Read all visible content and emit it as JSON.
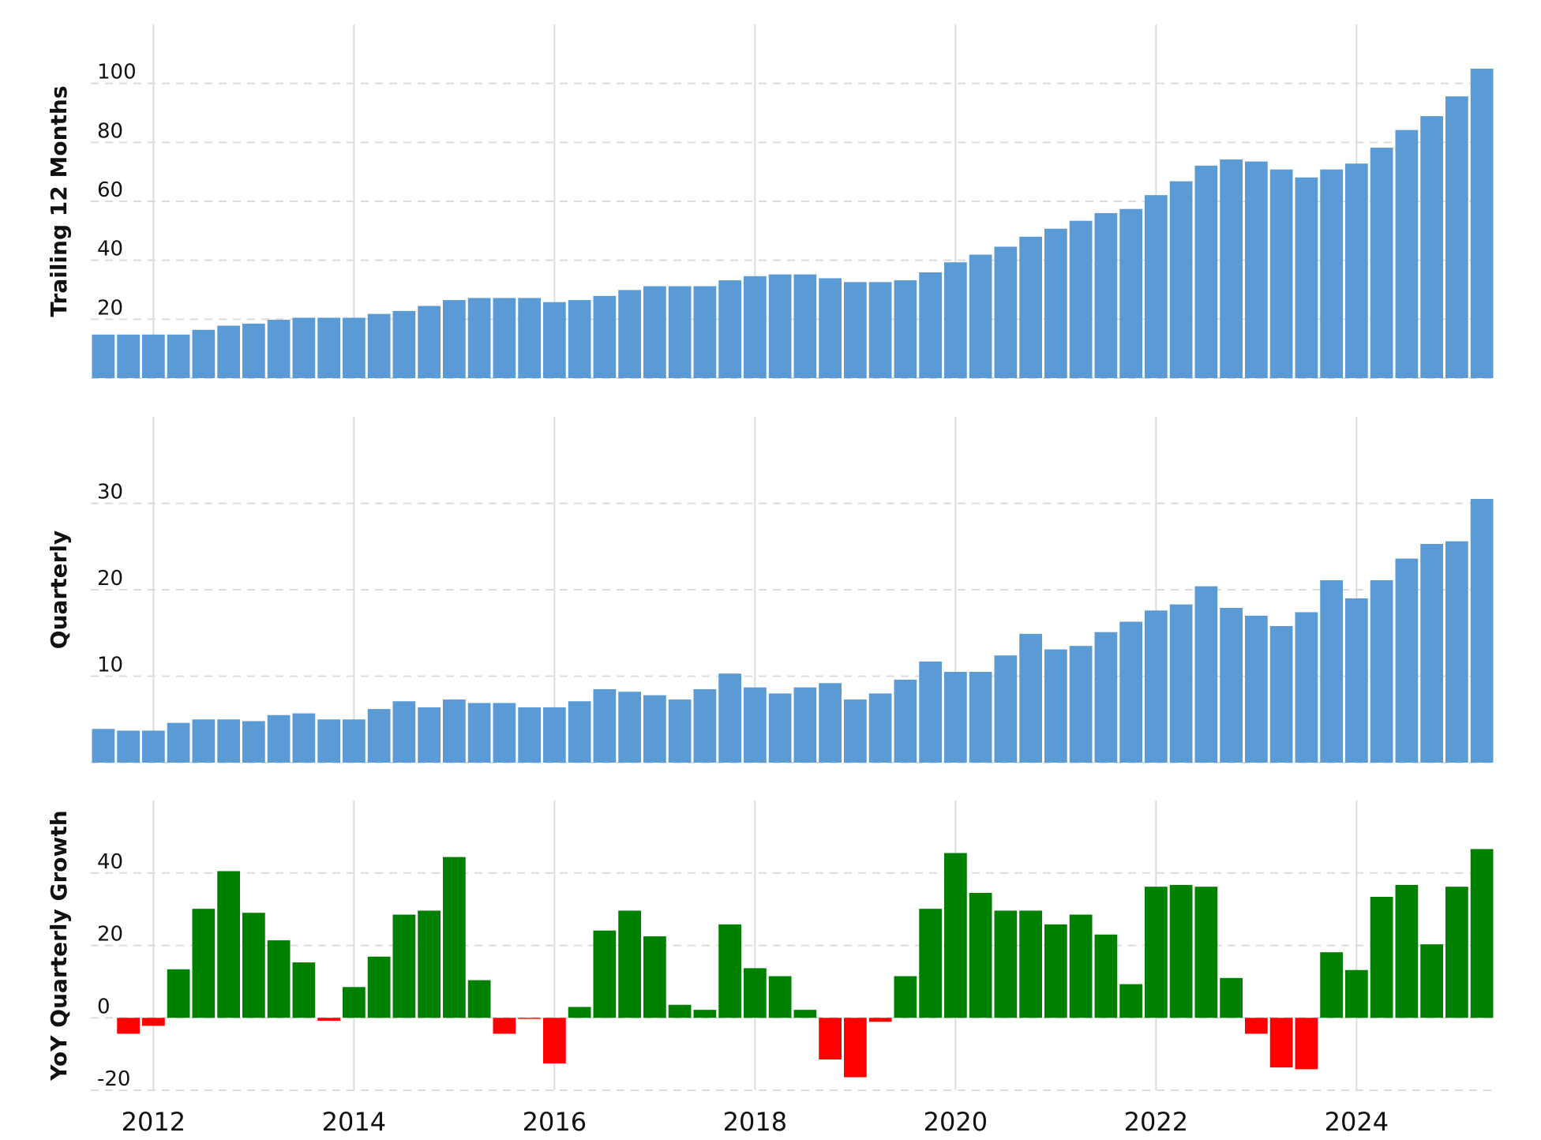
{
  "chart_data": [
    {
      "type": "bar",
      "ylabel": "Trailing 12 Months",
      "color": "#5b9bd5",
      "grid": true,
      "x": [
        2011.5,
        2011.75,
        2012,
        2012.25,
        2012.5,
        2012.75,
        2013,
        2013.25,
        2013.5,
        2013.75,
        2014,
        2014.25,
        2014.5,
        2014.75,
        2015,
        2015.25,
        2015.5,
        2015.75,
        2016,
        2016.25,
        2016.5,
        2016.75,
        2017,
        2017.25,
        2017.5,
        2017.75,
        2018,
        2018.25,
        2018.5,
        2018.75,
        2019,
        2019.25,
        2019.5,
        2019.75,
        2020,
        2020.25,
        2020.5,
        2020.75,
        2021,
        2021.25,
        2021.5,
        2021.75,
        2022,
        2022.25,
        2022.5,
        2022.75,
        2023,
        2023.25,
        2023.5,
        2023.75,
        2024,
        2024.25,
        2024.5,
        2024.75,
        2025,
        2025.25
      ],
      "values": [
        14.8,
        14.8,
        14.8,
        14.8,
        16.4,
        17.8,
        18.5,
        19.8,
        20.5,
        20.5,
        20.5,
        21.8,
        22.8,
        24.5,
        26.5,
        27.2,
        27.2,
        27.2,
        25.8,
        26.5,
        27.9,
        29.9,
        31.2,
        31.2,
        31.2,
        33.2,
        34.6,
        35.2,
        35.2,
        33.9,
        32.6,
        32.6,
        33.2,
        35.9,
        39.3,
        41.9,
        44.6,
        48,
        50.7,
        53.4,
        56,
        57.4,
        62.1,
        66.8,
        72.1,
        74.2,
        73.5,
        70.8,
        68.1,
        70.8,
        72.8,
        78.2,
        84.2,
        88.9,
        95.6,
        105
      ],
      "xlim": [
        2011.375,
        2025.375
      ],
      "xticks": [
        2012,
        2014,
        2016,
        2018,
        2020,
        2022,
        2024
      ],
      "ylim": [
        0,
        120
      ],
      "yticks": [
        0,
        20,
        40,
        60,
        80,
        100
      ]
    },
    {
      "type": "bar",
      "ylabel": "Quarterly",
      "color": "#5b9bd5",
      "grid": true,
      "x": [
        2011.5,
        2011.75,
        2012,
        2012.25,
        2012.5,
        2012.75,
        2013,
        2013.25,
        2013.5,
        2013.75,
        2014,
        2014.25,
        2014.5,
        2014.75,
        2015,
        2015.25,
        2015.5,
        2015.75,
        2016,
        2016.25,
        2016.5,
        2016.75,
        2017,
        2017.25,
        2017.5,
        2017.75,
        2018,
        2018.25,
        2018.5,
        2018.75,
        2019,
        2019.25,
        2019.5,
        2019.75,
        2020,
        2020.25,
        2020.5,
        2020.75,
        2021,
        2021.25,
        2021.5,
        2021.75,
        2022,
        2022.25,
        2022.5,
        2022.75,
        2023,
        2023.25,
        2023.5,
        2023.75,
        2024,
        2024.25,
        2024.5,
        2024.75,
        2025,
        2025.25
      ],
      "values": [
        3.9,
        3.7,
        3.7,
        4.6,
        5.0,
        5.0,
        4.8,
        5.5,
        5.7,
        5.0,
        5.0,
        6.2,
        7.1,
        6.4,
        7.3,
        6.9,
        6.9,
        6.4,
        6.4,
        7.1,
        8.5,
        8.2,
        7.8,
        7.3,
        8.5,
        10.3,
        8.7,
        8.0,
        8.7,
        9.2,
        7.3,
        8.0,
        9.6,
        11.7,
        10.5,
        10.5,
        12.4,
        14.9,
        13.1,
        13.5,
        15.1,
        16.3,
        17.6,
        18.3,
        20.4,
        17.9,
        17.0,
        15.8,
        17.4,
        21.1,
        19.0,
        21.1,
        23.6,
        25.3,
        25.6,
        30.5
      ],
      "xlim": [
        2011.375,
        2025.375
      ],
      "xticks": [
        2012,
        2014,
        2016,
        2018,
        2020,
        2022,
        2024
      ],
      "ylim": [
        0,
        40
      ],
      "yticks": [
        0,
        10,
        20,
        30
      ]
    },
    {
      "type": "bar",
      "ylabel": "YoY Quarterly Growth",
      "color": "#008000",
      "negative_color": "#ff0000",
      "grid": true,
      "x": [
        2011.5,
        2011.75,
        2012,
        2012.25,
        2012.5,
        2012.75,
        2013,
        2013.25,
        2013.5,
        2013.75,
        2014,
        2014.25,
        2014.5,
        2014.75,
        2015,
        2015.25,
        2015.5,
        2015.75,
        2016,
        2016.25,
        2016.5,
        2016.75,
        2017,
        2017.25,
        2017.5,
        2017.75,
        2018,
        2018.25,
        2018.5,
        2018.75,
        2019,
        2019.25,
        2019.5,
        2019.75,
        2020,
        2020.25,
        2020.5,
        2020.75,
        2021,
        2021.25,
        2021.5,
        2021.75,
        2022,
        2022.25,
        2022.5,
        2022.75,
        2023,
        2023.25,
        2023.5,
        2023.75,
        2024,
        2024.25,
        2024.5,
        2024.75,
        2025,
        2025.25
      ],
      "values": [
        null,
        -4.4,
        -2.2,
        13.4,
        30.1,
        40.5,
        29.0,
        21.4,
        15.3,
        -0.8,
        8.5,
        16.9,
        28.5,
        29.6,
        44.4,
        10.4,
        -4.4,
        -0.3,
        -12.6,
        3.0,
        24.1,
        29.6,
        22.5,
        3.6,
        2.2,
        25.8,
        13.7,
        11.5,
        2.2,
        -11.5,
        -16.4,
        -1.1,
        11.5,
        30.1,
        45.5,
        34.5,
        29.6,
        29.6,
        25.8,
        28.5,
        23.0,
        9.3,
        36.2,
        36.7,
        36.2,
        11.0,
        -4.4,
        -13.7,
        -14.2,
        18.1,
        13.2,
        33.4,
        36.7,
        20.3,
        36.2,
        46.6
      ],
      "xlim": [
        2011.375,
        2025.375
      ],
      "xticks": [
        2012,
        2014,
        2016,
        2018,
        2020,
        2022,
        2024
      ],
      "ylim": [
        -20,
        60
      ],
      "yticks": [
        -20,
        0,
        20,
        40
      ]
    }
  ]
}
